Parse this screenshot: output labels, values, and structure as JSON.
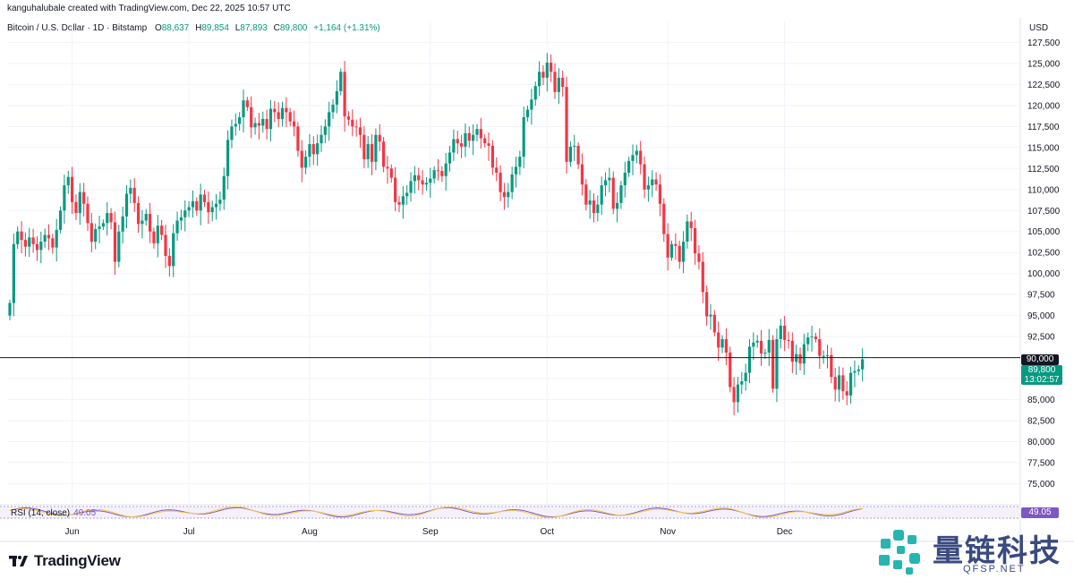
{
  "header": {
    "credit": "kanguhalubale created with TradingView.com, Dec 22, 2025 10:57 UTC",
    "symbol": "Bitcoin / U.S. Dollar · 1D · Bitstamp",
    "o_label": "O",
    "o_value": "88,637",
    "h_label": "H",
    "h_value": "89,854",
    "l_label": "L",
    "l_value": "87,893",
    "c_label": "C",
    "c_value": "89,800",
    "change": "+1,164 (+1.31%)",
    "currency": "USD"
  },
  "price_tags": {
    "level_90000": "90,000",
    "last_price": "89,800",
    "countdown": "13:02:57",
    "rsi_value": "49.05"
  },
  "rsi": {
    "label": "RSI (14, close)",
    "value": "49.05"
  },
  "branding": {
    "tradingview": "TradingView",
    "watermark_cn": "量链科技",
    "watermark_en": "QFSP.NET"
  },
  "colors": {
    "up": "#089981",
    "down": "#f23645",
    "rsi": "#7e57c2",
    "line": "#131722",
    "grid": "#f0f3fa"
  },
  "chart_data": {
    "type": "candlestick",
    "title": "Bitcoin / U.S. Dollar · 1D · Bitstamp",
    "ylabel": "USD",
    "ylim": [
      72500,
      128500
    ],
    "y_ticks": [
      75000,
      77500,
      80000,
      82500,
      85000,
      87500,
      90000,
      92500,
      95000,
      97500,
      100000,
      102500,
      105000,
      107500,
      110000,
      112500,
      115000,
      117500,
      120000,
      122500,
      125000,
      127500
    ],
    "x_labels": [
      "Jun",
      "Jul",
      "Aug",
      "Sep",
      "Oct",
      "Nov",
      "Dec"
    ],
    "x_label_index": [
      16,
      46,
      77,
      108,
      138,
      169,
      199
    ],
    "horizontal_line": 90000,
    "closes": [
      96500,
      103500,
      105000,
      104000,
      103200,
      104300,
      103500,
      102800,
      103800,
      104600,
      104200,
      103100,
      105200,
      107500,
      110500,
      111500,
      108500,
      107200,
      109700,
      108300,
      106000,
      103800,
      105300,
      105600,
      106000,
      107200,
      106100,
      101400,
      105000,
      106800,
      109500,
      110200,
      108400,
      105900,
      106300,
      107100,
      105000,
      103600,
      105700,
      104600,
      102100,
      100900,
      104800,
      106300,
      106700,
      107500,
      107900,
      108600,
      107500,
      109400,
      108500,
      107300,
      107900,
      108300,
      108800,
      111600,
      115900,
      117500,
      117800,
      118600,
      120600,
      119800,
      117400,
      117900,
      117600,
      118400,
      117200,
      119600,
      119200,
      118400,
      119700,
      119200,
      118100,
      117500,
      114600,
      112600,
      113900,
      115400,
      114200,
      115500,
      116500,
      117500,
      119200,
      120100,
      121700,
      124000,
      118700,
      118300,
      117500,
      117400,
      116500,
      113600,
      115400,
      113300,
      116500,
      115700,
      112700,
      112500,
      111400,
      108500,
      108200,
      109200,
      109600,
      111000,
      111700,
      111100,
      110600,
      110800,
      111300,
      112300,
      112200,
      111600,
      113100,
      114400,
      116000,
      115500,
      115100,
      116700,
      115800,
      116500,
      117200,
      116100,
      115500,
      115200,
      112600,
      112000,
      109700,
      109100,
      109700,
      111800,
      112700,
      113900,
      118600,
      119500,
      120700,
      122300,
      124000,
      123300,
      125100,
      124000,
      121600,
      123300,
      122200,
      113300,
      115100,
      115200,
      113000,
      110600,
      108200,
      108700,
      107200,
      108200,
      110500,
      111100,
      111400,
      107700,
      108400,
      110500,
      112000,
      113400,
      114100,
      114600,
      113000,
      110000,
      110500,
      111200,
      110600,
      108300,
      104700,
      101900,
      103500,
      103300,
      101400,
      103800,
      106200,
      105400,
      102400,
      101400,
      97800,
      94900,
      95100,
      93000,
      91200,
      92200,
      90600,
      86500,
      84700,
      86800,
      87200,
      88200,
      91300,
      91800,
      92000,
      90500,
      90600,
      92100,
      86300,
      92200,
      93800,
      92100,
      92000,
      89500,
      90400,
      89300,
      91600,
      92400,
      92500,
      92200,
      90200,
      90200,
      90300,
      87700,
      86200,
      87900,
      86000,
      85500,
      88200,
      88400,
      88600,
      89800
    ]
  }
}
